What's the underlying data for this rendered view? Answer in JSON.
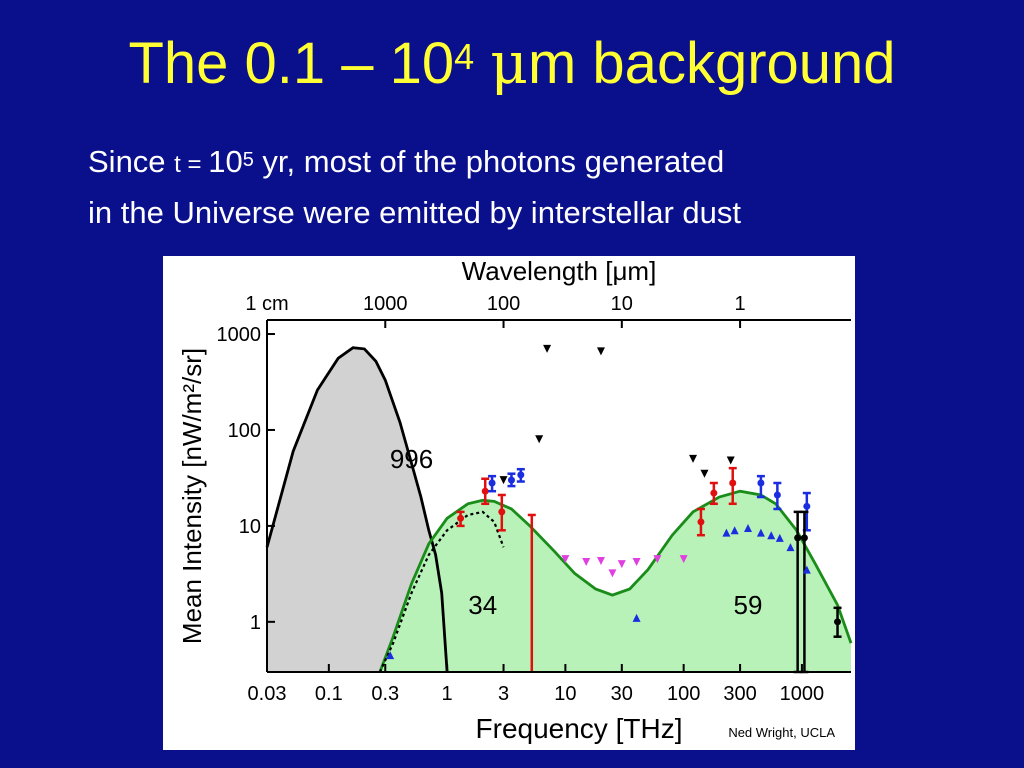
{
  "title": {
    "prefix": "The 0.1 – 10",
    "sup": "4",
    "mu": "μ",
    "suffix": "m background"
  },
  "subtitle": {
    "part1": "Since ",
    "t": "t = ",
    "part2": "10",
    "sup": "5",
    "part3": " yr, most of the photons generated",
    "line2": "in the Universe were emitted by interstellar dust"
  },
  "credit": "Ned Wright, UCLA",
  "colors": {
    "background": "#0a0f8c",
    "title": "#ffff33",
    "cmb_fill": "#d2d2d2",
    "cib_fill": "#b8f2b8",
    "model_line": "#1a8c1a",
    "red": "#e01010",
    "blue": "#1a2ee0",
    "magenta": "#e040e0"
  },
  "chart_data": {
    "type": "line",
    "xscale": "log",
    "yscale": "log",
    "xlabel": "Frequency [THz]",
    "ylabel": "Mean Intensity [nW/m²/sr]",
    "top_axis_label": "Wavelength [μm]",
    "xlim": [
      0.03,
      2600
    ],
    "ylim": [
      0.3,
      1400
    ],
    "x_ticks": [
      {
        "v": 0.03,
        "t": "0.03"
      },
      {
        "v": 0.1,
        "t": "0.1"
      },
      {
        "v": 0.3,
        "t": "0.3"
      },
      {
        "v": 1,
        "t": "1"
      },
      {
        "v": 3,
        "t": "3"
      },
      {
        "v": 10,
        "t": "10"
      },
      {
        "v": 30,
        "t": "30"
      },
      {
        "v": 100,
        "t": "100"
      },
      {
        "v": 300,
        "t": "300"
      },
      {
        "v": 1000,
        "t": "1000"
      }
    ],
    "y_ticks": [
      {
        "v": 1,
        "t": "1"
      },
      {
        "v": 10,
        "t": "10"
      },
      {
        "v": 100,
        "t": "100"
      },
      {
        "v": 1000,
        "t": "1000"
      }
    ],
    "top_ticks": [
      {
        "v": 0.03,
        "t": "1 cm"
      },
      {
        "v": 0.3,
        "t": "1000"
      },
      {
        "v": 3,
        "t": "100"
      },
      {
        "v": 30,
        "t": "10"
      },
      {
        "v": 300,
        "t": "1"
      }
    ],
    "series": [
      {
        "key": "cmb",
        "fill": "#d2d2d2",
        "stroke": "#000000",
        "x": [
          0.03,
          0.05,
          0.08,
          0.12,
          0.16,
          0.2,
          0.25,
          0.3,
          0.4,
          0.5,
          0.6,
          0.7,
          0.8,
          0.9,
          1.0
        ],
        "y": [
          6,
          60,
          260,
          560,
          720,
          700,
          520,
          330,
          120,
          45,
          20,
          9,
          5,
          2,
          0.3
        ]
      },
      {
        "key": "cib",
        "fill": "#b8f2b8",
        "stroke": "#1a8c1a",
        "x": [
          0.27,
          0.35,
          0.5,
          0.7,
          1.0,
          1.5,
          2.0,
          2.5,
          3.5,
          5,
          8,
          12,
          18,
          25,
          35,
          50,
          80,
          120,
          200,
          300,
          450,
          600,
          900,
          1300,
          2000,
          2600
        ],
        "y": [
          0.3,
          0.7,
          2.5,
          6.5,
          12,
          17,
          18.5,
          18,
          15,
          10,
          5.5,
          3.2,
          2.2,
          1.9,
          2.2,
          3.5,
          8,
          14,
          20,
          23,
          21,
          17,
          9,
          4,
          1.5,
          0.6
        ]
      },
      {
        "key": "cib_dust_model",
        "stroke": "#000000",
        "dashed": true,
        "x": [
          0.27,
          0.35,
          0.5,
          0.7,
          1.0,
          1.5,
          2.0,
          2.5,
          3.0
        ],
        "y": [
          0.3,
          0.6,
          2,
          5,
          9,
          13,
          14,
          11,
          6
        ]
      }
    ],
    "annotations": [
      {
        "text": "996",
        "x": 0.5,
        "y": 40
      },
      {
        "text": "34",
        "x": 2.0,
        "y": 1.2
      },
      {
        "text": "59",
        "x": 350,
        "y": 1.2
      }
    ],
    "points": {
      "red": [
        {
          "x": 1.3,
          "y": 12,
          "lo": 10,
          "hi": 14
        },
        {
          "x": 2.1,
          "y": 23,
          "lo": 17,
          "hi": 31
        },
        {
          "x": 2.9,
          "y": 14,
          "lo": 9,
          "hi": 21
        },
        {
          "x": 140,
          "y": 11,
          "lo": 8,
          "hi": 15
        },
        {
          "x": 180,
          "y": 22,
          "lo": 17,
          "hi": 28
        },
        {
          "x": 260,
          "y": 28,
          "lo": 17,
          "hi": 40
        }
      ],
      "red_lines": [
        {
          "x": 5.2,
          "lo": 0.3,
          "hi": 13
        }
      ],
      "blue": [
        {
          "x": 2.4,
          "y": 28,
          "lo": 23,
          "hi": 33
        },
        {
          "x": 3.5,
          "y": 30,
          "lo": 26,
          "hi": 35
        },
        {
          "x": 4.2,
          "y": 34,
          "lo": 29,
          "hi": 39
        },
        {
          "x": 450,
          "y": 28,
          "lo": 20,
          "hi": 33
        },
        {
          "x": 620,
          "y": 21,
          "lo": 15,
          "hi": 28
        },
        {
          "x": 1100,
          "y": 16,
          "lo": 9,
          "hi": 22
        }
      ],
      "black": [
        {
          "x": 2000,
          "y": 1,
          "lo": 0.7,
          "hi": 1.4
        },
        {
          "x": 920,
          "y": 7.5,
          "lo": 0.3,
          "hi": 14
        },
        {
          "x": 1050,
          "y": 7.5,
          "lo": 0.3,
          "hi": 14
        }
      ],
      "blue_up": [
        {
          "x": 0.33,
          "y": 0.45
        },
        {
          "x": 40,
          "y": 1.1
        },
        {
          "x": 230,
          "y": 8.5
        },
        {
          "x": 270,
          "y": 9
        },
        {
          "x": 350,
          "y": 9.5
        },
        {
          "x": 450,
          "y": 8.5
        },
        {
          "x": 550,
          "y": 8
        },
        {
          "x": 650,
          "y": 7.5
        },
        {
          "x": 800,
          "y": 6
        },
        {
          "x": 1100,
          "y": 3.5
        }
      ],
      "magenta_down": [
        {
          "x": 10,
          "y": 4.5
        },
        {
          "x": 15,
          "y": 4.2
        },
        {
          "x": 20,
          "y": 4.3
        },
        {
          "x": 25,
          "y": 3.2
        },
        {
          "x": 30,
          "y": 4.0
        },
        {
          "x": 40,
          "y": 4.2
        },
        {
          "x": 60,
          "y": 4.5
        },
        {
          "x": 100,
          "y": 4.5
        }
      ],
      "black_down": [
        {
          "x": 7,
          "y": 700
        },
        {
          "x": 20,
          "y": 660
        },
        {
          "x": 6,
          "y": 80
        },
        {
          "x": 3,
          "y": 30
        },
        {
          "x": 120,
          "y": 50
        },
        {
          "x": 150,
          "y": 35
        },
        {
          "x": 250,
          "y": 48
        }
      ]
    }
  }
}
